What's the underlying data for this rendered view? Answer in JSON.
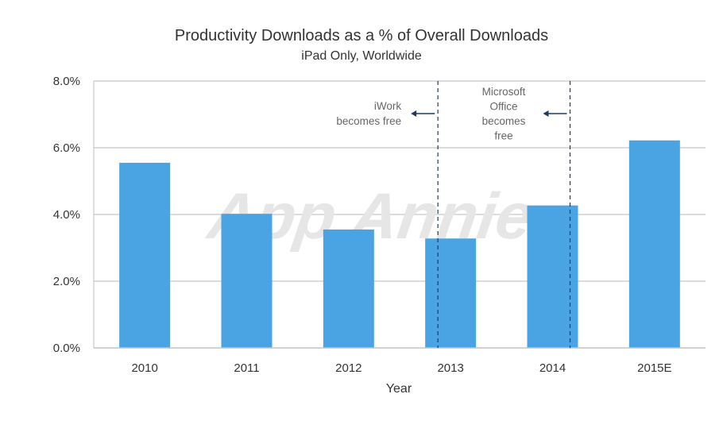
{
  "chart_data": {
    "type": "bar",
    "title": "Productivity Downloads as a % of Overall Downloads",
    "subtitle": "iPad Only, Worldwide",
    "xlabel": "Year",
    "ylabel": "",
    "categories": [
      "2010",
      "2011",
      "2012",
      "2013",
      "2014",
      "2015E"
    ],
    "values": [
      5.55,
      4.02,
      3.55,
      3.28,
      4.27,
      6.22
    ],
    "ylim": [
      0,
      8
    ],
    "yticks": [
      0,
      2,
      4,
      6,
      8
    ],
    "ytick_labels": [
      "0.0%",
      "2.0%",
      "4.0%",
      "6.0%",
      "8.0%"
    ],
    "grid": true,
    "bar_color": "#4aa3e3",
    "annotations": [
      {
        "after_category": "2013",
        "line1": "iWork",
        "line2": "becomes free",
        "lines": [
          "iWork",
          "becomes free"
        ]
      },
      {
        "after_category": "2014",
        "line1": "Microsoft",
        "line2": "Office",
        "line3": "becomes",
        "line4": "free",
        "lines": [
          "Microsoft",
          "Office",
          "becomes",
          "free"
        ]
      }
    ],
    "watermark": "App Annie"
  }
}
